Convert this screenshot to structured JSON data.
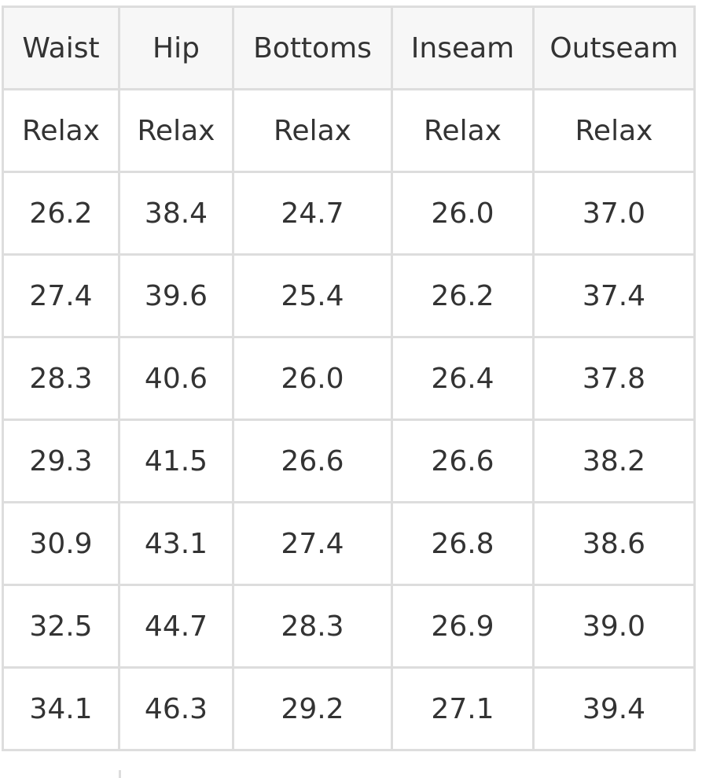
{
  "table": {
    "headers": [
      "Waist",
      "Hip",
      "Bottoms",
      "Inseam",
      "Outseam"
    ],
    "subheaders": [
      "Relax",
      "Relax",
      "Relax",
      "Relax",
      "Relax"
    ],
    "rows": [
      [
        "26.2",
        "38.4",
        "24.7",
        "26.0",
        "37.0"
      ],
      [
        "27.4",
        "39.6",
        "25.4",
        "26.2",
        "37.4"
      ],
      [
        "28.3",
        "40.6",
        "26.0",
        "26.4",
        "37.8"
      ],
      [
        "29.3",
        "41.5",
        "26.6",
        "26.6",
        "38.2"
      ],
      [
        "30.9",
        "43.1",
        "27.4",
        "26.8",
        "38.6"
      ],
      [
        "32.5",
        "44.7",
        "28.3",
        "26.9",
        "39.0"
      ],
      [
        "34.1",
        "46.3",
        "29.2",
        "27.1",
        "39.4"
      ]
    ]
  },
  "colors": {
    "border": "#dddddd",
    "header_background": "#f7f7f7",
    "text": "#333333"
  }
}
